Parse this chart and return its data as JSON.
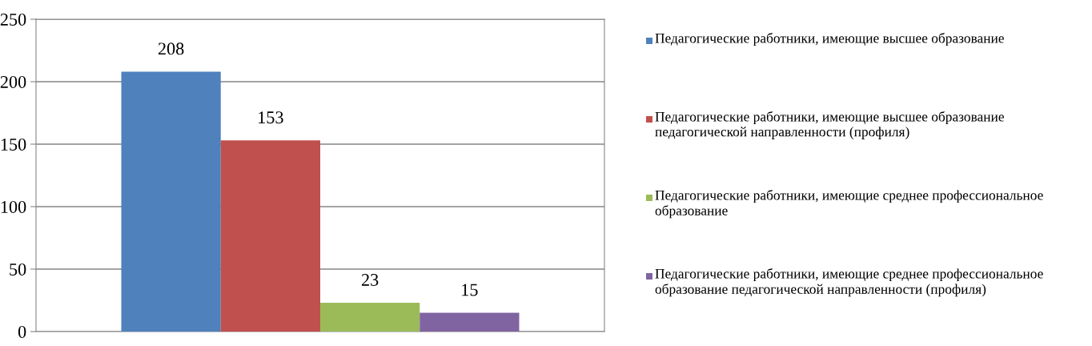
{
  "chart_data": {
    "type": "bar",
    "categories": [
      null
    ],
    "series": [
      {
        "name": "Педагогические работники, имеющие высшее образование",
        "color": "#4f81bd",
        "values": [
          208
        ]
      },
      {
        "name": "Педагогические работники, имеющие высшее образование педагогической направленности (профиля)",
        "color": "#c0504d",
        "values": [
          153
        ]
      },
      {
        "name": "Педагогические работники, имеющие среднее профессиональное образование",
        "color": "#9bbb59",
        "values": [
          23
        ]
      },
      {
        "name": "Педагогические работники, имеющие среднее профессиональное образование педагогической направленности (профиля)",
        "color": "#8064a2",
        "values": [
          15
        ]
      }
    ],
    "ylim": [
      0,
      250
    ],
    "yticks": [
      0,
      50,
      100,
      150,
      200,
      250
    ],
    "grid": "y",
    "legend": "right",
    "data_labels": true
  }
}
